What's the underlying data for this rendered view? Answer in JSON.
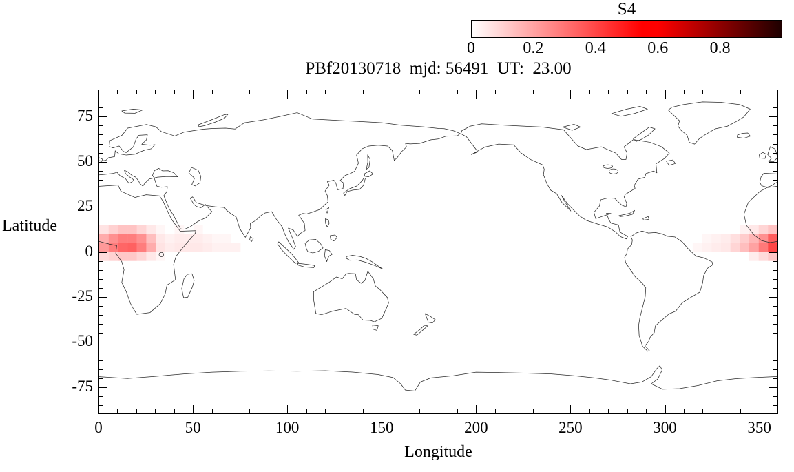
{
  "chart_data": {
    "type": "heatmap",
    "title": "PBf20130718  mjd: 56491  UT:  23.00",
    "xlabel": "Longitude",
    "ylabel": "Latitude",
    "xlim": [
      0,
      360
    ],
    "ylim": [
      -90,
      90
    ],
    "x_ticks": [
      0,
      50,
      100,
      150,
      200,
      250,
      300,
      350
    ],
    "y_ticks": [
      75,
      50,
      25,
      0,
      -25,
      -50,
      -75
    ],
    "x_minor_step": 10,
    "y_minor_step": 5,
    "grid": false,
    "basemap": "world-coastlines-longitude-0-360",
    "colorbar": {
      "label": "S4",
      "min": 0,
      "max": 1,
      "tick_values": [
        0,
        0.2,
        0.4,
        0.6,
        0.8
      ],
      "tick_labels": [
        "0",
        "0.2",
        "0.4",
        "0.6",
        "0.8"
      ],
      "colormap": [
        "#ffffff",
        "#ffb4b4",
        "#ff4545",
        "#ff0000",
        "#8e0000",
        "#1e0000"
      ]
    },
    "cell_size_deg": 5,
    "cell_format": [
      "lon_west_deg",
      "lat_south_deg",
      "s4"
    ],
    "cells": [
      [
        0,
        0,
        0.22
      ],
      [
        5,
        0,
        0.28
      ],
      [
        10,
        0,
        0.33
      ],
      [
        15,
        0,
        0.34
      ],
      [
        20,
        0,
        0.28
      ],
      [
        25,
        0,
        0.18
      ],
      [
        30,
        0,
        0.06
      ],
      [
        35,
        0,
        0.04
      ],
      [
        40,
        0,
        0.05
      ],
      [
        45,
        0,
        0.05
      ],
      [
        50,
        0,
        0.05
      ],
      [
        55,
        0,
        0.04
      ],
      [
        60,
        0,
        0.03
      ],
      [
        65,
        0,
        0.03
      ],
      [
        70,
        0,
        0.03
      ],
      [
        0,
        5,
        0.18
      ],
      [
        5,
        5,
        0.24
      ],
      [
        10,
        5,
        0.28
      ],
      [
        15,
        5,
        0.28
      ],
      [
        20,
        5,
        0.24
      ],
      [
        25,
        5,
        0.14
      ],
      [
        30,
        5,
        0.05
      ],
      [
        35,
        5,
        0.03
      ],
      [
        40,
        5,
        0.04
      ],
      [
        45,
        5,
        0.04
      ],
      [
        50,
        5,
        0.04
      ],
      [
        55,
        5,
        0.03
      ],
      [
        60,
        5,
        0.02
      ],
      [
        65,
        5,
        0.02
      ],
      [
        0,
        10,
        0.06
      ],
      [
        5,
        10,
        0.1
      ],
      [
        10,
        10,
        0.13
      ],
      [
        15,
        10,
        0.13
      ],
      [
        20,
        10,
        0.09
      ],
      [
        25,
        10,
        0.05
      ],
      [
        30,
        10,
        0.02
      ],
      [
        40,
        10,
        0.02
      ],
      [
        50,
        10,
        0.02
      ],
      [
        0,
        -5,
        0.08
      ],
      [
        5,
        -5,
        0.1
      ],
      [
        10,
        -5,
        0.12
      ],
      [
        15,
        -5,
        0.12
      ],
      [
        20,
        -5,
        0.09
      ],
      [
        25,
        -5,
        0.05
      ],
      [
        30,
        -5,
        0.02
      ],
      [
        315,
        0,
        0.02
      ],
      [
        320,
        0,
        0.03
      ],
      [
        325,
        0,
        0.04
      ],
      [
        330,
        0,
        0.05
      ],
      [
        335,
        0,
        0.09
      ],
      [
        340,
        0,
        0.14
      ],
      [
        345,
        0,
        0.2
      ],
      [
        350,
        0,
        0.29
      ],
      [
        355,
        0,
        0.4
      ],
      [
        320,
        5,
        0.02
      ],
      [
        325,
        5,
        0.03
      ],
      [
        330,
        5,
        0.04
      ],
      [
        335,
        5,
        0.07
      ],
      [
        340,
        5,
        0.11
      ],
      [
        345,
        5,
        0.16
      ],
      [
        350,
        5,
        0.24
      ],
      [
        355,
        5,
        0.35
      ],
      [
        340,
        10,
        0.03
      ],
      [
        345,
        10,
        0.05
      ],
      [
        350,
        10,
        0.09
      ],
      [
        355,
        10,
        0.13
      ],
      [
        345,
        -5,
        0.04
      ],
      [
        350,
        -5,
        0.08
      ],
      [
        355,
        -5,
        0.12
      ]
    ]
  }
}
